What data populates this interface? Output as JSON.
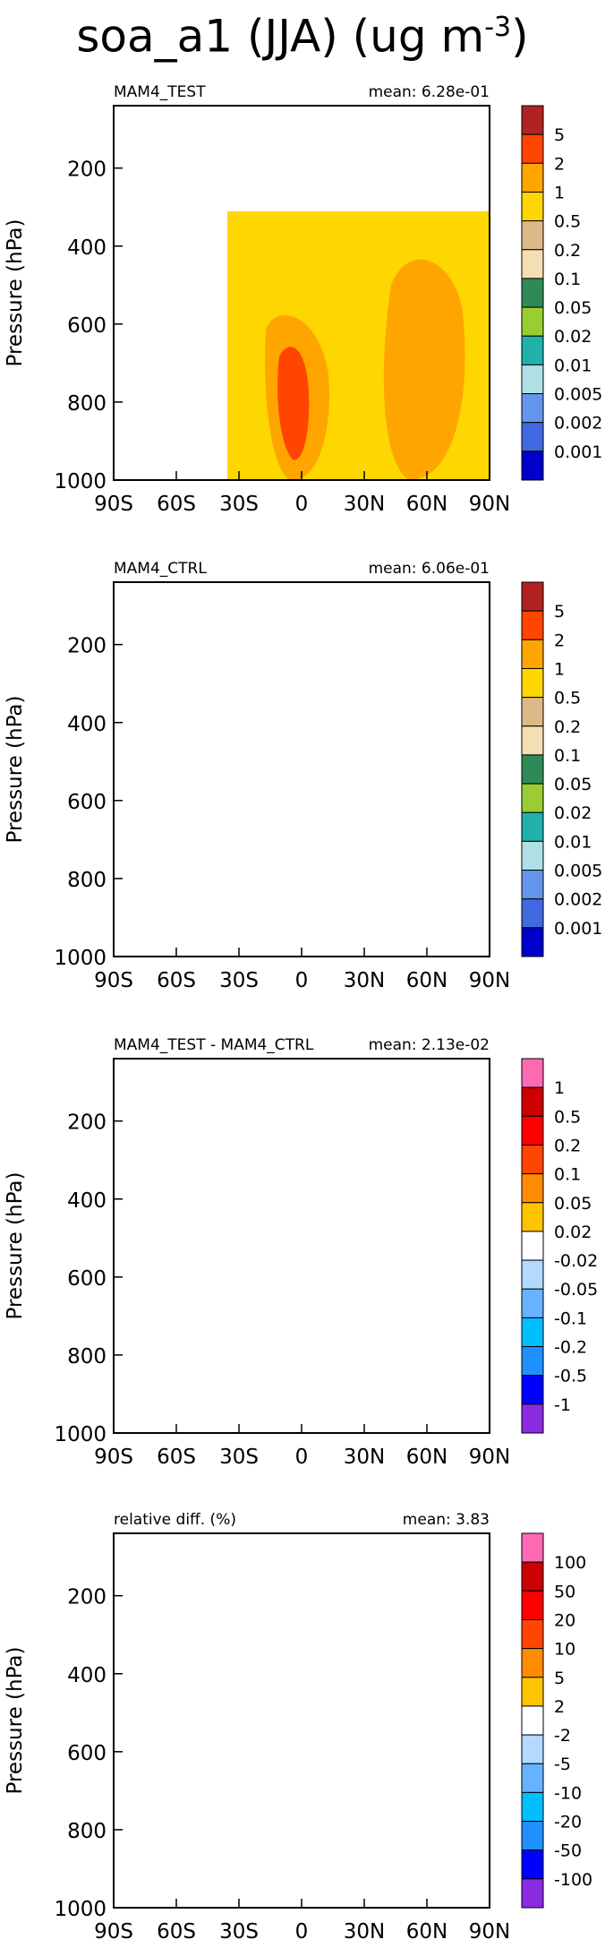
{
  "figure": {
    "title_main": "soa_a1 (JJA) (ug m",
    "title_exp": "-3",
    "title_close": ")"
  },
  "chart_data": [
    {
      "type": "heatmap",
      "title_left": "MAM4_TEST",
      "title_right": "mean: 6.28e-01",
      "ylabel": "Pressure (hPa)",
      "xlabel": "",
      "x_ticks": [
        "90S",
        "60S",
        "30S",
        "0",
        "30N",
        "60N",
        "90N"
      ],
      "y_ticks": [
        "200",
        "400",
        "600",
        "800",
        "1000"
      ],
      "xlim": [
        -90,
        90
      ],
      "ylim": [
        1000,
        40
      ],
      "levels": [
        "5",
        "2",
        "1",
        "0.5",
        "0.2",
        "0.1",
        "0.05",
        "0.02",
        "0.01",
        "0.005",
        "0.002",
        "0.001"
      ],
      "colors": [
        "#b22222",
        "#ff4500",
        "#ffa500",
        "#ffd700",
        "#deb887",
        "#f5deb3",
        "#2e8b57",
        "#9acd32",
        "#20b2aa",
        "#b0e0e6",
        "#6495ed",
        "#4169e1",
        "#0000cd"
      ]
    },
    {
      "type": "heatmap",
      "title_left": "MAM4_CTRL",
      "title_right": "mean: 6.06e-01",
      "ylabel": "Pressure (hPa)",
      "xlabel": "",
      "x_ticks": [
        "90S",
        "60S",
        "30S",
        "0",
        "30N",
        "60N",
        "90N"
      ],
      "y_ticks": [
        "200",
        "400",
        "600",
        "800",
        "1000"
      ],
      "xlim": [
        -90,
        90
      ],
      "ylim": [
        1000,
        40
      ],
      "levels": [
        "5",
        "2",
        "1",
        "0.5",
        "0.2",
        "0.1",
        "0.05",
        "0.02",
        "0.01",
        "0.005",
        "0.002",
        "0.001"
      ],
      "colors": [
        "#b22222",
        "#ff4500",
        "#ffa500",
        "#ffd700",
        "#deb887",
        "#f5deb3",
        "#2e8b57",
        "#9acd32",
        "#20b2aa",
        "#b0e0e6",
        "#6495ed",
        "#4169e1",
        "#0000cd"
      ]
    },
    {
      "type": "heatmap",
      "title_left": "MAM4_TEST - MAM4_CTRL",
      "title_right": "mean: 2.13e-02",
      "ylabel": "Pressure (hPa)",
      "xlabel": "",
      "x_ticks": [
        "90S",
        "60S",
        "30S",
        "0",
        "30N",
        "60N",
        "90N"
      ],
      "y_ticks": [
        "200",
        "400",
        "600",
        "800",
        "1000"
      ],
      "xlim": [
        -90,
        90
      ],
      "ylim": [
        1000,
        40
      ],
      "levels": [
        "1",
        "0.5",
        "0.2",
        "0.1",
        "0.05",
        "0.02",
        "-0.02",
        "-0.05",
        "-0.1",
        "-0.2",
        "-0.5",
        "-1"
      ],
      "colors": [
        "#ff69b4",
        "#cc0000",
        "#ff0000",
        "#ff4500",
        "#ff8c00",
        "#ffc400",
        "#ffffff",
        "#b3d9ff",
        "#66b3ff",
        "#00bfff",
        "#1e90ff",
        "#0000ff",
        "#8a2be2"
      ]
    },
    {
      "type": "heatmap",
      "title_left": "relative diff. (%)",
      "title_right": "mean:  3.83",
      "ylabel": "Pressure (hPa)",
      "xlabel": "",
      "x_ticks": [
        "90S",
        "60S",
        "30S",
        "0",
        "30N",
        "60N",
        "90N"
      ],
      "y_ticks": [
        "200",
        "400",
        "600",
        "800",
        "1000"
      ],
      "xlim": [
        -90,
        90
      ],
      "ylim": [
        1000,
        40
      ],
      "levels": [
        "100",
        "50",
        "20",
        "10",
        "5",
        "2",
        "-2",
        "-5",
        "-10",
        "-20",
        "-50",
        "-100"
      ],
      "colors": [
        "#ff69b4",
        "#cc0000",
        "#ff0000",
        "#ff4500",
        "#ff8c00",
        "#ffc400",
        "#ffffff",
        "#b3d9ff",
        "#66b3ff",
        "#00bfff",
        "#1e90ff",
        "#0000ff",
        "#8a2be2"
      ]
    }
  ]
}
